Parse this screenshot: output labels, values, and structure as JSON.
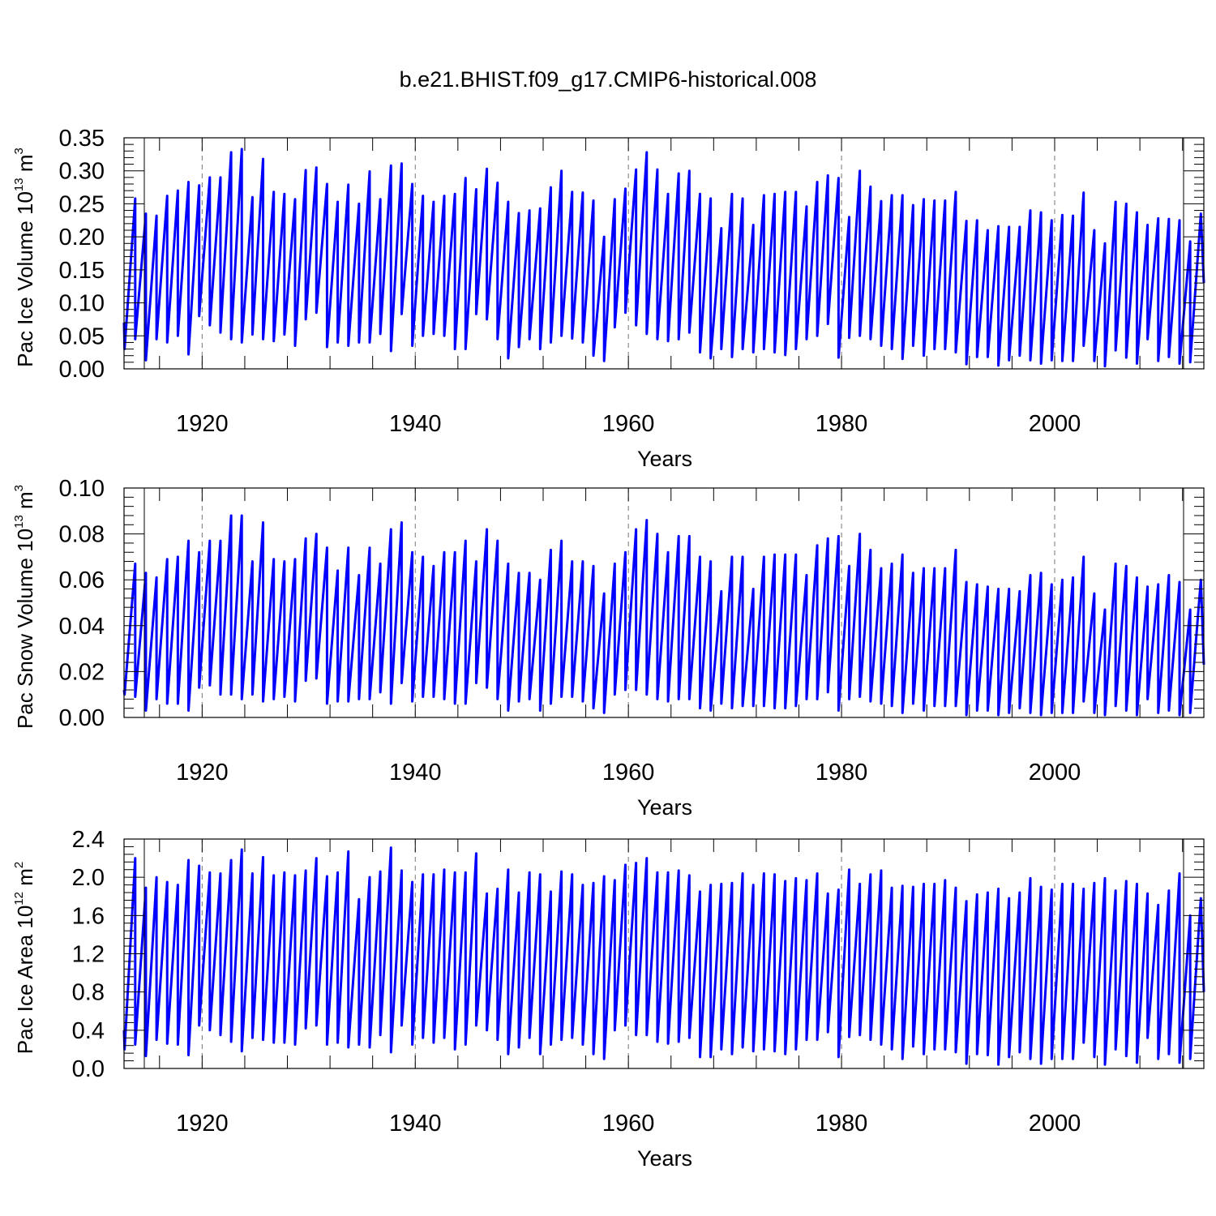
{
  "title": "b.e21.BHIST.f09_g17.CMIP6-historical.008",
  "line_color": "#0000ff",
  "chart_data": [
    {
      "type": "line",
      "ylabel_main": "Pac Ice Volume 10",
      "ylabel_exp": "13",
      "ylabel_unit": " m",
      "ylabel_unit_exp": "3",
      "xlabel": "Years",
      "ylim": [
        0,
        0.35
      ],
      "yticks": [
        0.0,
        0.05,
        0.1,
        0.15,
        0.2,
        0.25,
        0.3,
        0.35
      ],
      "yticklabels": [
        "0.00",
        "0.05",
        "0.10",
        "0.15",
        "0.20",
        "0.25",
        "0.30",
        "0.35"
      ],
      "xlim": [
        1912.67,
        2014.0
      ],
      "xticks": [
        1920,
        1940,
        1960,
        1980,
        2000
      ],
      "xticklabels": [
        "1920",
        "1940",
        "1960",
        "1980",
        "2000"
      ],
      "grid_x": true,
      "series": [
        {
          "name": "Pac Ice Volume",
          "years": [
            1913,
            1914,
            1915,
            1916,
            1917,
            1918,
            1919,
            1920,
            1921,
            1922,
            1923,
            1924,
            1925,
            1926,
            1927,
            1928,
            1929,
            1930,
            1931,
            1932,
            1933,
            1934,
            1935,
            1936,
            1937,
            1938,
            1939,
            1940,
            1941,
            1942,
            1943,
            1944,
            1945,
            1946,
            1947,
            1948,
            1949,
            1950,
            1951,
            1952,
            1953,
            1954,
            1955,
            1956,
            1957,
            1958,
            1959,
            1960,
            1961,
            1962,
            1963,
            1964,
            1965,
            1966,
            1967,
            1968,
            1969,
            1970,
            1971,
            1972,
            1973,
            1974,
            1975,
            1976,
            1977,
            1978,
            1979,
            1980,
            1981,
            1982,
            1983,
            1984,
            1985,
            1986,
            1987,
            1988,
            1989,
            1990,
            1991,
            1992,
            1993,
            1994,
            1995,
            1996,
            1997,
            1998,
            1999,
            2000,
            2001,
            2002,
            2003,
            2004,
            2005,
            2006,
            2007,
            2008,
            2009,
            2010,
            2011,
            2012,
            2013
          ],
          "max": [
            0.258,
            0.235,
            0.232,
            0.262,
            0.27,
            0.283,
            0.278,
            0.29,
            0.29,
            0.328,
            0.333,
            0.26,
            0.318,
            0.268,
            0.265,
            0.257,
            0.301,
            0.305,
            0.28,
            0.253,
            0.279,
            0.25,
            0.299,
            0.257,
            0.308,
            0.311,
            0.28,
            0.262,
            0.253,
            0.262,
            0.265,
            0.289,
            0.272,
            0.303,
            0.282,
            0.253,
            0.236,
            0.24,
            0.243,
            0.275,
            0.3,
            0.268,
            0.267,
            0.255,
            0.2,
            0.257,
            0.273,
            0.302,
            0.328,
            0.302,
            0.265,
            0.296,
            0.3,
            0.265,
            0.258,
            0.213,
            0.265,
            0.258,
            0.218,
            0.263,
            0.265,
            0.268,
            0.268,
            0.246,
            0.283,
            0.293,
            0.289,
            0.23,
            0.3,
            0.276,
            0.254,
            0.263,
            0.263,
            0.248,
            0.257,
            0.255,
            0.255,
            0.268,
            0.224,
            0.225,
            0.21,
            0.216,
            0.215,
            0.215,
            0.24,
            0.237,
            0.225,
            0.233,
            0.232,
            0.267,
            0.21,
            0.19,
            0.253,
            0.25,
            0.237,
            0.218,
            0.228,
            0.227,
            0.225,
            0.193,
            0.235
          ],
          "min": [
            0.03,
            0.045,
            0.013,
            0.045,
            0.04,
            0.05,
            0.022,
            0.08,
            0.066,
            0.055,
            0.045,
            0.04,
            0.052,
            0.045,
            0.042,
            0.052,
            0.035,
            0.075,
            0.085,
            0.033,
            0.04,
            0.035,
            0.04,
            0.04,
            0.053,
            0.027,
            0.083,
            0.035,
            0.05,
            0.053,
            0.05,
            0.03,
            0.03,
            0.083,
            0.075,
            0.045,
            0.016,
            0.033,
            0.045,
            0.03,
            0.04,
            0.05,
            0.046,
            0.04,
            0.02,
            0.012,
            0.063,
            0.085,
            0.066,
            0.053,
            0.045,
            0.042,
            0.045,
            0.055,
            0.025,
            0.016,
            0.03,
            0.018,
            0.03,
            0.025,
            0.03,
            0.025,
            0.021,
            0.03,
            0.045,
            0.05,
            0.068,
            0.017,
            0.047,
            0.05,
            0.045,
            0.035,
            0.03,
            0.015,
            0.035,
            0.02,
            0.03,
            0.03,
            0.025,
            0.007,
            0.018,
            0.018,
            0.005,
            0.013,
            0.02,
            0.013,
            0.008,
            0.013,
            0.012,
            0.012,
            0.035,
            0.012,
            0.004,
            0.028,
            0.017,
            0.008,
            0.045,
            0.012,
            0.018,
            0.008,
            0.01
          ],
          "start": 0.07,
          "end": 0.13
        }
      ]
    },
    {
      "type": "line",
      "ylabel_main": "Pac Snow Volume 10",
      "ylabel_exp": "13",
      "ylabel_unit": " m",
      "ylabel_unit_exp": "3",
      "xlabel": "Years",
      "ylim": [
        0,
        0.1
      ],
      "yticks": [
        0.0,
        0.02,
        0.04,
        0.06,
        0.08,
        0.1
      ],
      "yticklabels": [
        "0.00",
        "0.02",
        "0.04",
        "0.06",
        "0.08",
        "0.10"
      ],
      "xlim": [
        1912.67,
        2014.0
      ],
      "xticks": [
        1920,
        1940,
        1960,
        1980,
        2000
      ],
      "xticklabels": [
        "1920",
        "1940",
        "1960",
        "1980",
        "2000"
      ],
      "grid_x": true,
      "series": [
        {
          "name": "Pac Snow Volume",
          "years": [
            1913,
            1914,
            1915,
            1916,
            1917,
            1918,
            1919,
            1920,
            1921,
            1922,
            1923,
            1924,
            1925,
            1926,
            1927,
            1928,
            1929,
            1930,
            1931,
            1932,
            1933,
            1934,
            1935,
            1936,
            1937,
            1938,
            1939,
            1940,
            1941,
            1942,
            1943,
            1944,
            1945,
            1946,
            1947,
            1948,
            1949,
            1950,
            1951,
            1952,
            1953,
            1954,
            1955,
            1956,
            1957,
            1958,
            1959,
            1960,
            1961,
            1962,
            1963,
            1964,
            1965,
            1966,
            1967,
            1968,
            1969,
            1970,
            1971,
            1972,
            1973,
            1974,
            1975,
            1976,
            1977,
            1978,
            1979,
            1980,
            1981,
            1982,
            1983,
            1984,
            1985,
            1986,
            1987,
            1988,
            1989,
            1990,
            1991,
            1992,
            1993,
            1994,
            1995,
            1996,
            1997,
            1998,
            1999,
            2000,
            2001,
            2002,
            2003,
            2004,
            2005,
            2006,
            2007,
            2008,
            2009,
            2010,
            2011,
            2012,
            2013
          ],
          "max": [
            0.067,
            0.063,
            0.061,
            0.069,
            0.07,
            0.077,
            0.072,
            0.077,
            0.077,
            0.088,
            0.088,
            0.068,
            0.085,
            0.069,
            0.068,
            0.069,
            0.078,
            0.08,
            0.074,
            0.064,
            0.074,
            0.062,
            0.074,
            0.067,
            0.082,
            0.085,
            0.072,
            0.07,
            0.066,
            0.072,
            0.072,
            0.077,
            0.068,
            0.082,
            0.077,
            0.067,
            0.063,
            0.063,
            0.06,
            0.073,
            0.077,
            0.068,
            0.068,
            0.066,
            0.054,
            0.067,
            0.072,
            0.082,
            0.086,
            0.08,
            0.072,
            0.079,
            0.079,
            0.07,
            0.068,
            0.055,
            0.07,
            0.07,
            0.056,
            0.07,
            0.071,
            0.071,
            0.071,
            0.062,
            0.075,
            0.078,
            0.079,
            0.066,
            0.08,
            0.073,
            0.065,
            0.067,
            0.071,
            0.063,
            0.065,
            0.065,
            0.065,
            0.073,
            0.059,
            0.058,
            0.057,
            0.056,
            0.056,
            0.055,
            0.062,
            0.063,
            0.058,
            0.06,
            0.061,
            0.07,
            0.054,
            0.047,
            0.067,
            0.066,
            0.061,
            0.057,
            0.058,
            0.062,
            0.059,
            0.047,
            0.06
          ],
          "min": [
            0.01,
            0.009,
            0.003,
            0.008,
            0.006,
            0.006,
            0.003,
            0.013,
            0.014,
            0.01,
            0.01,
            0.008,
            0.01,
            0.007,
            0.008,
            0.009,
            0.007,
            0.016,
            0.017,
            0.006,
            0.007,
            0.007,
            0.008,
            0.008,
            0.011,
            0.006,
            0.015,
            0.007,
            0.009,
            0.009,
            0.008,
            0.006,
            0.006,
            0.015,
            0.013,
            0.008,
            0.003,
            0.007,
            0.008,
            0.003,
            0.006,
            0.009,
            0.009,
            0.007,
            0.004,
            0.002,
            0.01,
            0.012,
            0.012,
            0.01,
            0.008,
            0.007,
            0.008,
            0.008,
            0.004,
            0.003,
            0.006,
            0.004,
            0.005,
            0.005,
            0.005,
            0.004,
            0.004,
            0.005,
            0.008,
            0.008,
            0.011,
            0.003,
            0.008,
            0.009,
            0.007,
            0.006,
            0.005,
            0.002,
            0.006,
            0.003,
            0.005,
            0.005,
            0.005,
            0.001,
            0.003,
            0.003,
            0.001,
            0.002,
            0.004,
            0.002,
            0.001,
            0.002,
            0.002,
            0.002,
            0.007,
            0.002,
            0.001,
            0.005,
            0.003,
            0.001,
            0.008,
            0.002,
            0.003,
            0.001,
            0.002
          ],
          "start": 0.012,
          "end": 0.023
        }
      ]
    },
    {
      "type": "line",
      "ylabel_main": "Pac Ice Area 10",
      "ylabel_exp": "12",
      "ylabel_unit": " m",
      "ylabel_unit_exp": "2",
      "xlabel": "Years",
      "ylim": [
        0,
        2.4
      ],
      "yticks": [
        0.0,
        0.4,
        0.8,
        1.2,
        1.6,
        2.0,
        2.4
      ],
      "yticklabels": [
        "0.0",
        "0.4",
        "0.8",
        "1.2",
        "1.6",
        "2.0",
        "2.4"
      ],
      "xlim": [
        1912.67,
        2014.0
      ],
      "xticks": [
        1920,
        1940,
        1960,
        1980,
        2000
      ],
      "xticklabels": [
        "1920",
        "1940",
        "1960",
        "1980",
        "2000"
      ],
      "grid_x": true,
      "series": [
        {
          "name": "Pac Ice Area",
          "years": [
            1913,
            1914,
            1915,
            1916,
            1917,
            1918,
            1919,
            1920,
            1921,
            1922,
            1923,
            1924,
            1925,
            1926,
            1927,
            1928,
            1929,
            1930,
            1931,
            1932,
            1933,
            1934,
            1935,
            1936,
            1937,
            1938,
            1939,
            1940,
            1941,
            1942,
            1943,
            1944,
            1945,
            1946,
            1947,
            1948,
            1949,
            1950,
            1951,
            1952,
            1953,
            1954,
            1955,
            1956,
            1957,
            1958,
            1959,
            1960,
            1961,
            1962,
            1963,
            1964,
            1965,
            1966,
            1967,
            1968,
            1969,
            1970,
            1971,
            1972,
            1973,
            1974,
            1975,
            1976,
            1977,
            1978,
            1979,
            1980,
            1981,
            1982,
            1983,
            1984,
            1985,
            1986,
            1987,
            1988,
            1989,
            1990,
            1991,
            1992,
            1993,
            1994,
            1995,
            1996,
            1997,
            1998,
            1999,
            2000,
            2001,
            2002,
            2003,
            2004,
            2005,
            2006,
            2007,
            2008,
            2009,
            2010,
            2011,
            2012,
            2013
          ],
          "max": [
            2.2,
            1.89,
            2.0,
            1.95,
            1.92,
            2.18,
            2.12,
            2.05,
            2.04,
            2.18,
            2.29,
            2.04,
            2.21,
            2.02,
            2.05,
            2.02,
            2.07,
            2.2,
            2.01,
            2.05,
            2.27,
            1.77,
            2.0,
            2.06,
            2.31,
            2.07,
            1.95,
            2.03,
            2.03,
            2.08,
            2.05,
            2.05,
            2.25,
            1.83,
            1.88,
            2.08,
            1.84,
            2.05,
            2.03,
            1.85,
            2.06,
            2.03,
            1.92,
            1.94,
            2.01,
            1.97,
            2.13,
            2.15,
            2.2,
            2.05,
            2.05,
            2.07,
            2.02,
            1.85,
            1.92,
            1.93,
            1.94,
            2.04,
            1.92,
            2.04,
            2.03,
            1.96,
            1.99,
            1.97,
            2.04,
            1.83,
            1.87,
            2.08,
            1.93,
            2.03,
            2.07,
            1.89,
            1.91,
            1.9,
            1.93,
            1.93,
            1.97,
            1.89,
            1.75,
            1.82,
            1.84,
            1.88,
            1.78,
            1.84,
            1.99,
            1.9,
            1.87,
            1.93,
            1.93,
            1.88,
            1.94,
            1.99,
            1.86,
            1.96,
            1.93,
            1.83,
            1.71,
            1.86,
            2.04,
            1.6,
            1.78
          ],
          "min": [
            0.2,
            0.25,
            0.13,
            0.3,
            0.26,
            0.25,
            0.14,
            0.45,
            0.4,
            0.35,
            0.28,
            0.18,
            0.32,
            0.3,
            0.27,
            0.27,
            0.25,
            0.42,
            0.45,
            0.25,
            0.27,
            0.22,
            0.25,
            0.22,
            0.35,
            0.17,
            0.45,
            0.25,
            0.32,
            0.27,
            0.32,
            0.2,
            0.25,
            0.45,
            0.4,
            0.3,
            0.15,
            0.22,
            0.32,
            0.15,
            0.25,
            0.3,
            0.32,
            0.25,
            0.15,
            0.1,
            0.4,
            0.45,
            0.35,
            0.35,
            0.28,
            0.26,
            0.28,
            0.32,
            0.12,
            0.12,
            0.2,
            0.15,
            0.22,
            0.18,
            0.2,
            0.18,
            0.15,
            0.2,
            0.3,
            0.3,
            0.38,
            0.12,
            0.33,
            0.35,
            0.3,
            0.25,
            0.2,
            0.1,
            0.23,
            0.15,
            0.2,
            0.2,
            0.17,
            0.05,
            0.15,
            0.14,
            0.04,
            0.12,
            0.17,
            0.1,
            0.05,
            0.1,
            0.1,
            0.1,
            0.27,
            0.12,
            0.04,
            0.2,
            0.13,
            0.06,
            0.32,
            0.1,
            0.15,
            0.06,
            0.1
          ],
          "start": 0.4,
          "end": 0.8
        }
      ]
    }
  ]
}
